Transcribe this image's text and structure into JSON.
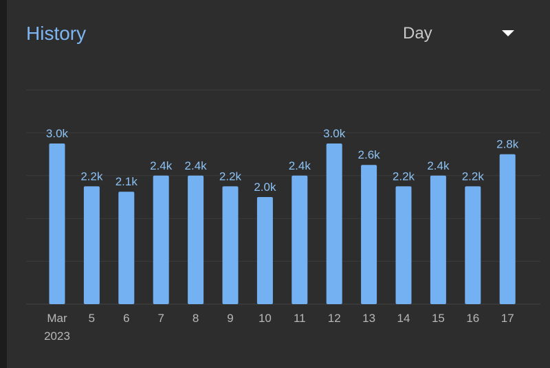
{
  "header": {
    "title": "History",
    "range": "Day"
  },
  "colors": {
    "bar": "#74b1f2",
    "label": "#8dc3f5",
    "grid": "#3d3d3d",
    "background": "#2d2d2d",
    "title": "#7eb6f3"
  },
  "icons": {
    "dropdown": "chevron-down-icon"
  },
  "chart_data": {
    "type": "bar",
    "categories": [
      "Mar\n2023",
      "5",
      "6",
      "7",
      "8",
      "9",
      "10",
      "11",
      "12",
      "13",
      "14",
      "15",
      "16",
      "17"
    ],
    "values": [
      3.0,
      2.2,
      2.1,
      2.4,
      2.4,
      2.2,
      2.0,
      2.4,
      3.0,
      2.6,
      2.2,
      2.4,
      2.2,
      2.8
    ],
    "value_labels": [
      "3.0k",
      "2.2k",
      "2.1k",
      "2.4k",
      "2.4k",
      "2.2k",
      "2.0k",
      "2.4k",
      "3.0k",
      "2.6k",
      "2.2k",
      "2.4k",
      "2.2k",
      "2.8k"
    ],
    "unit": "thousands",
    "ylim": [
      0,
      4
    ],
    "grid": true,
    "legend": "none"
  }
}
